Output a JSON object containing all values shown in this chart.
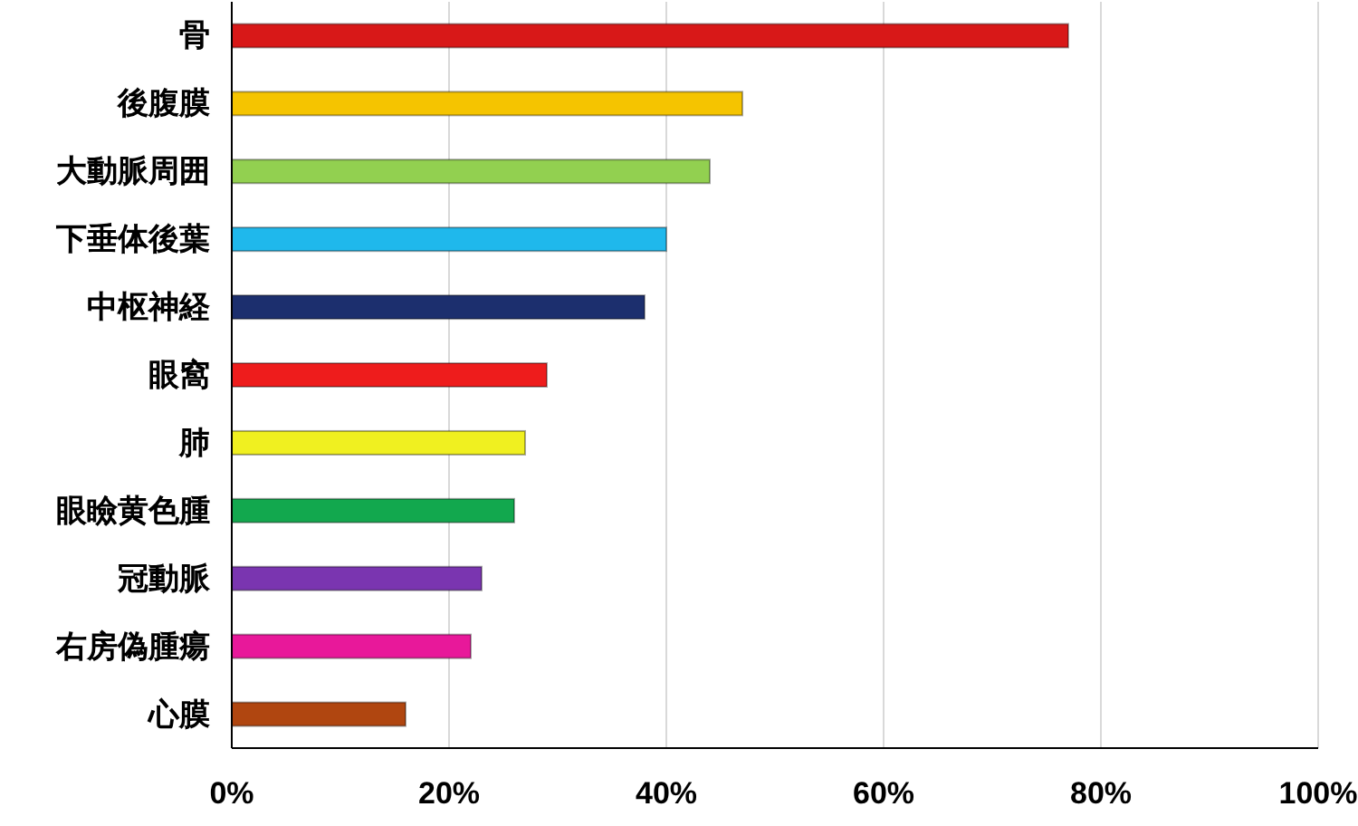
{
  "chart_data": {
    "type": "bar",
    "orientation": "horizontal",
    "categories": [
      "骨",
      "後腹膜",
      "大動脈周囲",
      "下垂体後葉",
      "中枢神経",
      "眼窩",
      "肺",
      "眼瞼黄色腫",
      "冠動脈",
      "右房偽腫瘍",
      "心膜"
    ],
    "values": [
      77,
      47,
      44,
      40,
      38,
      29,
      27,
      26,
      23,
      22,
      16
    ],
    "colors": [
      "#d81818",
      "#f5c400",
      "#92d050",
      "#1fb8ec",
      "#1c2f6e",
      "#ee1c1c",
      "#f0f020",
      "#12a84e",
      "#7a35b0",
      "#e8189a",
      "#b04610"
    ],
    "xlim": [
      0,
      100
    ],
    "xticks": [
      {
        "value": 0,
        "label": "0%"
      },
      {
        "value": 20,
        "label": "20%"
      },
      {
        "value": 40,
        "label": "40%"
      },
      {
        "value": 60,
        "label": "60%"
      },
      {
        "value": 80,
        "label": "80%"
      },
      {
        "value": 100,
        "label": "100%"
      }
    ],
    "grid": "x"
  }
}
